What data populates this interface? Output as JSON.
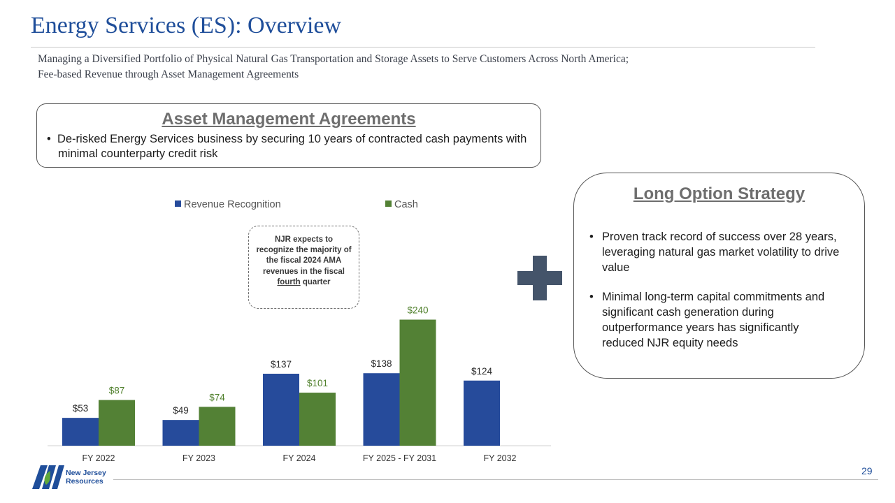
{
  "header": {
    "title": "Energy Services (ES): Overview",
    "subtitle_line1": "Managing a Diversified Portfolio of Physical Natural Gas Transportation and Storage Assets to Serve Customers Across North America;",
    "subtitle_line2": "Fee-based Revenue through Asset Management Agreements"
  },
  "ama": {
    "heading": "Asset Management Agreements",
    "bullet": "De-risked Energy Services business by securing 10 years of contracted cash payments with minimal counterparty credit risk"
  },
  "long_option": {
    "heading": "Long Option Strategy",
    "bullets": [
      "Proven track record of success over 28 years, leveraging natural gas market volatility to drive value",
      "Minimal long-term capital commitments and significant cash generation during outperformance years has significantly reduced NJR equity needs"
    ]
  },
  "callout": {
    "text_before": "NJR expects to recognize the majority of the fiscal 2024 AMA revenues in the fiscal ",
    "text_underlined": "fourth",
    "text_after": " quarter"
  },
  "plus_icon": "plus-icon",
  "colors": {
    "revenue": "#264b9b",
    "cash": "#538135",
    "title": "#1f4e9a",
    "plus": "#44546a"
  },
  "chart_data": {
    "type": "bar",
    "categories": [
      "FY 2022",
      "FY 2023",
      "FY 2024",
      "FY 2025 - FY 2031",
      "FY 2032"
    ],
    "series": [
      {
        "name": "Revenue Recognition",
        "values": [
          53,
          49,
          137,
          138,
          124
        ],
        "labels": [
          "$53",
          "$49",
          "$137",
          "$138",
          "$124"
        ]
      },
      {
        "name": "Cash",
        "values": [
          87,
          74,
          101,
          240,
          null
        ],
        "labels": [
          "$87",
          "$74",
          "$101",
          "$240",
          ""
        ]
      }
    ],
    "ylim": [
      0,
      250
    ],
    "grid": false,
    "legend": "top"
  },
  "footer": {
    "page_number": "29",
    "logo_text_line1": "New Jersey",
    "logo_text_line2": "Resources"
  }
}
